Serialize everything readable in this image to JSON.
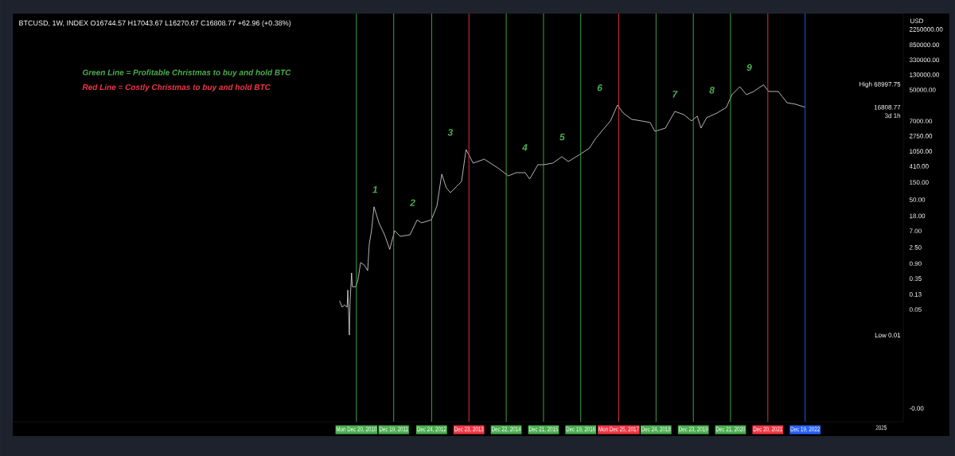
{
  "chart_data": {
    "type": "line",
    "title": "BTCUSD, 1W, INDEX  O16744.57  H17043.67  L16270.67  C16808.77  +62.96 (+0.38%)",
    "ylabel": "USD",
    "log": "y",
    "xlim": [
      "2001-10-12",
      "2025-08-04"
    ],
    "ylim": [
      4.3e-05,
      6100000
    ],
    "xticks": [
      {
        "value": "2010-12-20",
        "label": "Mon Dec 20, 2010"
      },
      {
        "value": "2011-12-19",
        "label": "Dec 19, 2011"
      },
      {
        "value": "2012-12-24",
        "label": "Dec 24, 2012"
      },
      {
        "value": "2013-12-23",
        "label": "Dec 23, 2013"
      },
      {
        "value": "2014-12-22",
        "label": "Dec 22, 2014"
      },
      {
        "value": "2015-12-21",
        "label": "Dec 21, 2015"
      },
      {
        "value": "2016-12-19",
        "label": "Dec 19, 2016"
      },
      {
        "value": "2017-12-25",
        "label": "Mon Dec 25, 2017"
      },
      {
        "value": "2018-12-24",
        "label": "Dec 24, 2018"
      },
      {
        "value": "2019-12-23",
        "label": "Dec 23, 2019"
      },
      {
        "value": "2020-12-21",
        "label": "Dec 21, 2020"
      },
      {
        "value": "2021-12-20",
        "label": "Dec 20, 2021"
      },
      {
        "value": "2022-12-19",
        "label": "Dec 19, 2022"
      },
      {
        "value": "2025-01-01",
        "label": "2025"
      }
    ],
    "yticks": [
      {
        "value": 0.0001,
        "label": "-0.00"
      },
      {
        "value": 0.05,
        "label": "0.05"
      },
      {
        "value": 0.13,
        "label": "0.13"
      },
      {
        "value": 0.35,
        "label": "0.35"
      },
      {
        "value": 0.9,
        "label": "0.90"
      },
      {
        "value": 2.5,
        "label": "2.50"
      },
      {
        "value": 7,
        "label": "7.00"
      },
      {
        "value": 18,
        "label": "18.00"
      },
      {
        "value": 50,
        "label": "50.00"
      },
      {
        "value": 150,
        "label": "150.00"
      },
      {
        "value": 410,
        "label": "410.00"
      },
      {
        "value": 1050,
        "label": "1050.00"
      },
      {
        "value": 2750,
        "label": "2750.00"
      },
      {
        "value": 7000,
        "label": "7000.00"
      },
      {
        "value": 50000,
        "label": "50000.00"
      },
      {
        "value": 130000,
        "label": "130000.00"
      },
      {
        "value": 330000,
        "label": "330000.00"
      },
      {
        "value": 850000,
        "label": "850000.00"
      },
      {
        "value": 2250000,
        "label": "2250000.00"
      }
    ],
    "series": [
      {
        "color": "#ffffff",
        "line_style": "solid",
        "x": [
          "2010-07-08",
          "2010-08-03",
          "2010-08-25",
          "2010-09-20",
          "2010-09-27",
          "2010-10-12",
          "2010-10-19",
          "2010-11-03",
          "2010-11-10",
          "2010-12-13",
          "2011-01-04",
          "2011-01-30",
          "2011-03-07",
          "2011-04-09",
          "2011-04-24",
          "2011-05-16",
          "2011-06-10",
          "2011-07-28",
          "2011-09-21",
          "2011-11-10",
          "2011-12-28",
          "2012-02-21",
          "2012-05-26",
          "2012-08-04",
          "2012-09-17",
          "2012-12-20",
          "2013-02-13",
          "2013-04-02",
          "2013-05-16",
          "2013-06-25",
          "2013-10-12",
          "2013-11-25",
          "2013-12-20",
          "2014-02-02",
          "2014-05-22",
          "2014-10-01",
          "2015-01-12",
          "2015-03-29",
          "2015-06-25",
          "2015-08-08",
          "2015-10-27",
          "2015-12-20",
          "2016-03-21",
          "2016-06-17",
          "2016-08-19",
          "2016-12-13",
          "2017-03-15",
          "2017-05-08",
          "2017-07-24",
          "2017-10-05",
          "2017-12-13",
          "2018-02-06",
          "2018-05-01",
          "2018-08-04",
          "2018-10-27",
          "2018-12-13",
          "2019-03-26",
          "2019-06-25",
          "2019-09-21",
          "2019-12-06",
          "2020-01-30",
          "2020-03-07",
          "2020-05-01",
          "2020-08-11",
          "2020-11-10",
          "2021-01-04",
          "2021-03-21",
          "2021-05-26",
          "2021-08-04",
          "2021-11-08",
          "2021-12-28",
          "2022-04-01",
          "2022-06-25",
          "2022-09-16",
          "2022-12-19"
        ],
        "values": [
          0.087,
          0.058,
          0.067,
          0.058,
          0.17,
          0.01,
          0.079,
          0.5,
          0.21,
          0.21,
          0.32,
          0.96,
          0.82,
          0.58,
          3.0,
          7.1,
          32,
          11.7,
          5.5,
          2.2,
          7.1,
          5.0,
          5.5,
          14,
          11.7,
          14,
          33,
          250,
          106,
          78,
          158,
          1170,
          870,
          500,
          640,
          370,
          224,
          274,
          274,
          184,
          452,
          452,
          500,
          747,
          552,
          870,
          1290,
          2240,
          4090,
          7100,
          19300,
          11700,
          7850,
          7100,
          6430,
          3700,
          4520,
          12900,
          10600,
          7100,
          9600,
          4520,
          8700,
          11700,
          16600,
          37000,
          61100,
          37000,
          45300,
          68997.75,
          45300,
          45300,
          22400,
          20300,
          16808.77
        ]
      }
    ],
    "ref_lines": [
      {
        "axis": "x",
        "value": "2010-12-20",
        "color": "#4caf50"
      },
      {
        "axis": "x",
        "value": "2011-12-19",
        "color": "#4caf50"
      },
      {
        "axis": "x",
        "value": "2012-12-24",
        "color": "#4caf50"
      },
      {
        "axis": "x",
        "value": "2013-12-23",
        "color": "#f23645"
      },
      {
        "axis": "x",
        "value": "2014-12-22",
        "color": "#4caf50"
      },
      {
        "axis": "x",
        "value": "2015-12-21",
        "color": "#4caf50"
      },
      {
        "axis": "x",
        "value": "2016-12-19",
        "color": "#4caf50"
      },
      {
        "axis": "x",
        "value": "2017-12-25",
        "color": "#f23645"
      },
      {
        "axis": "x",
        "value": "2018-12-24",
        "color": "#4caf50"
      },
      {
        "axis": "x",
        "value": "2019-12-23",
        "color": "#4caf50"
      },
      {
        "axis": "x",
        "value": "2020-12-21",
        "color": "#4caf50"
      },
      {
        "axis": "x",
        "value": "2021-12-20",
        "color": "#f23645"
      },
      {
        "axis": "x",
        "value": "2022-12-19",
        "color": "#2962ff"
      }
    ],
    "annotations": [
      "Green Line = Profitable Christmas to buy and hold BTC",
      "Red Line = Costly Christmas to buy and hold BTC",
      "1",
      "2",
      "3",
      "4",
      "5",
      "6",
      "7",
      "8",
      "9",
      "High 68997.75",
      "Low 0.01",
      "16808.77",
      "3d 1h"
    ]
  }
}
